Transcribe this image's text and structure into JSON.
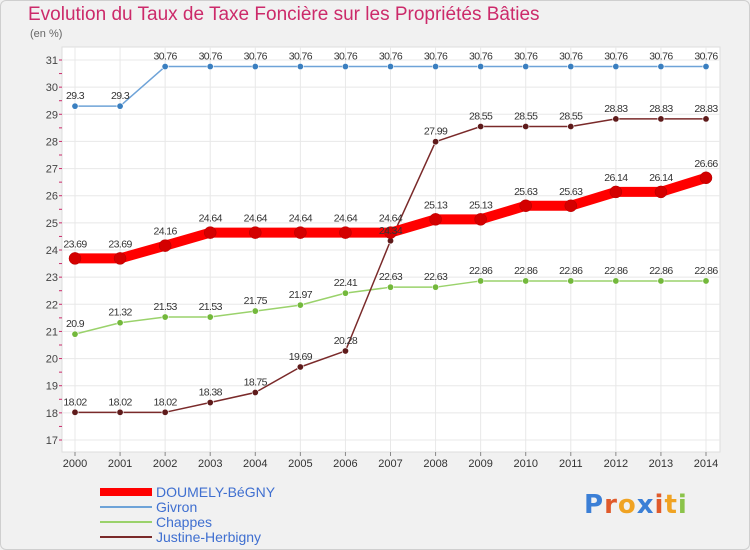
{
  "header": {
    "title": "Evolution du Taux de Taxe Foncière sur les Propriétés Bâties",
    "unit": "(en %)"
  },
  "logo": {
    "text": "Proxiti",
    "letters": [
      "P",
      "r",
      "o",
      "x",
      "i",
      "t",
      "i"
    ],
    "colors": [
      "#3b7fd6",
      "#e05a2b",
      "#f0a323",
      "#3b7fd6",
      "#e05a2b",
      "#f0a323",
      "#8bc34a"
    ]
  },
  "chart_data": {
    "type": "line",
    "title": "Evolution du Taux de Taxe Foncière sur les Propriétés Bâties",
    "ylabel": "(en %)",
    "xlabel": "",
    "categories": [
      "2000",
      "2001",
      "2002",
      "2003",
      "2004",
      "2005",
      "2006",
      "2007",
      "2008",
      "2009",
      "2010",
      "2011",
      "2012",
      "2013",
      "2014"
    ],
    "ylim": [
      17,
      31
    ],
    "yticks": [
      "17",
      "18",
      "19",
      "20",
      "21",
      "22",
      "23",
      "24",
      "25",
      "26",
      "27",
      "28",
      "29",
      "30",
      "31"
    ],
    "grid": true,
    "legend_position": "bottom-left",
    "series": [
      {
        "name": "DOUMELY-BéGNY",
        "color": "#ff0000",
        "marker": "#d40000",
        "values": [
          23.69,
          23.69,
          24.16,
          24.64,
          24.64,
          24.64,
          24.64,
          24.64,
          25.13,
          25.13,
          25.63,
          25.63,
          26.14,
          26.14,
          26.66
        ],
        "labels": [
          "23.69",
          "23.69",
          "24.16",
          "24.64",
          "24.64",
          "24.64",
          "24.64",
          "24.64",
          "25.13",
          "25.13",
          "25.63",
          "25.63",
          "26.14",
          "26.14",
          "26.66"
        ]
      },
      {
        "name": "Givron",
        "color": "#6ea3d8",
        "marker": "#3a7fc0",
        "values": [
          29.3,
          29.3,
          30.76,
          30.76,
          30.76,
          30.76,
          30.76,
          30.76,
          30.76,
          30.76,
          30.76,
          30.76,
          30.76,
          30.76,
          30.76
        ],
        "labels": [
          "29.3",
          "29.3",
          "30.76",
          "30.76",
          "30.76",
          "30.76",
          "30.76",
          "30.76",
          "30.76",
          "30.76",
          "30.76",
          "30.76",
          "30.76",
          "30.76",
          "30.76"
        ]
      },
      {
        "name": "Chappes",
        "color": "#9ad26b",
        "marker": "#73b83b",
        "values": [
          20.9,
          21.32,
          21.53,
          21.53,
          21.75,
          21.97,
          22.41,
          22.63,
          22.63,
          22.86,
          22.86,
          22.86,
          22.86,
          22.86,
          22.86
        ],
        "labels": [
          "20.9",
          "21.32",
          "21.53",
          "21.53",
          "21.75",
          "21.97",
          "22.41",
          "22.63",
          "22.63",
          "22.86",
          "22.86",
          "22.86",
          "22.86",
          "22.86",
          "22.86"
        ]
      },
      {
        "name": "Justine-Herbigny",
        "color": "#7a2a2a",
        "marker": "#5e1a1a",
        "values": [
          18.02,
          18.02,
          18.02,
          18.38,
          18.75,
          19.69,
          20.28,
          24.34,
          27.99,
          28.55,
          28.55,
          28.55,
          28.83,
          28.83,
          28.83
        ],
        "labels": [
          "18.02",
          "18.02",
          "18.02",
          "18.38",
          "18.75",
          "19.69",
          "20.28",
          "24.34",
          "27.99",
          "28.55",
          "28.55",
          "28.55",
          "28.83",
          "28.83",
          "28.83"
        ]
      }
    ]
  }
}
